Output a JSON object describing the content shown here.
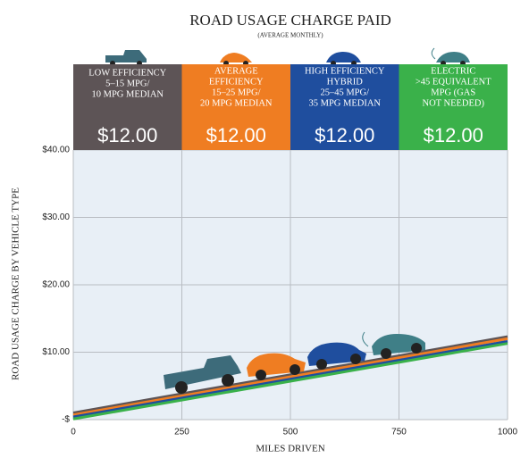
{
  "chart_data": {
    "type": "line",
    "title": "ROAD USAGE CHARGE PAID",
    "subtitle": "(AVERAGE MONTHLY)",
    "ylabel": "ROAD USAGE CHARGE BY VEHICLE TYPE",
    "xlabel": "MILES DRIVEN",
    "x": [
      0,
      1000
    ],
    "series": [
      {
        "color": "#5d5456",
        "values": [
          1.0,
          12.3
        ]
      },
      {
        "color": "#ef7d22",
        "values": [
          0.7,
          12.0
        ]
      },
      {
        "color": "#1f4e9e",
        "values": [
          0.4,
          11.6
        ]
      },
      {
        "color": "#3ab14a",
        "values": [
          0.1,
          11.3
        ]
      }
    ],
    "panels": [
      {
        "lines": [
          "LOW EFFICIENCY",
          "5–15 MPG/",
          "10 MPG MEDIAN"
        ],
        "charge": "$12.00",
        "color": "#5d5456"
      },
      {
        "lines": [
          "AVERAGE",
          "EFFICIENCY",
          "15–25 MPG/",
          "20 MPG MEDIAN"
        ],
        "charge": "$12.00",
        "color": "#ef7d22"
      },
      {
        "lines": [
          "HIGH EFFICIENCY",
          "HYBRID",
          "25–45 MPG/",
          "35 MPG MEDIAN"
        ],
        "charge": "$12.00",
        "color": "#1f4e9e"
      },
      {
        "lines": [
          "ELECTRIC",
          ">45 EQUIVALENT",
          "MPG (GAS",
          "NOT NEEDED)"
        ],
        "charge": "$12.00",
        "color": "#3ab14a"
      }
    ],
    "xlim": [
      0,
      1000
    ],
    "xticks": [
      0,
      250,
      500,
      750,
      1000
    ],
    "ylim": [
      0,
      40
    ],
    "yticks": [
      {
        "value": 0,
        "label": "-$"
      },
      {
        "value": 10,
        "label": "$10.00"
      },
      {
        "value": 20,
        "label": "$20.00"
      },
      {
        "value": 30,
        "label": "$30.00"
      },
      {
        "value": 40,
        "label": "$40.00"
      }
    ],
    "grid": true
  }
}
